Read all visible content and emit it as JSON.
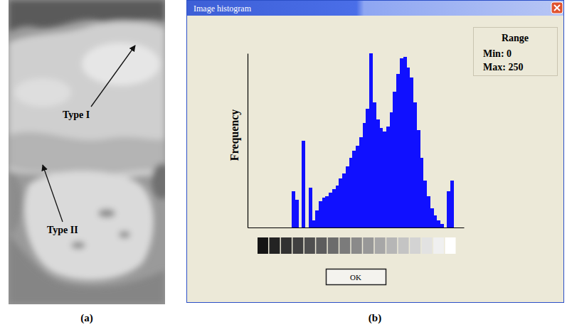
{
  "panel_a": {
    "letter": "(a)",
    "annotations": [
      "Type I",
      "Type II"
    ]
  },
  "panel_b": {
    "letter": "(b)",
    "window_title": "Image histogram",
    "range_box": {
      "heading": "Range",
      "lines": [
        "Min: 0",
        "Max: 250"
      ]
    },
    "button": "OK"
  },
  "chart_data": {
    "type": "histogram",
    "y_label": "Frequency",
    "color": "#1010ff",
    "tick_labels": false,
    "xlim": [
      0,
      256
    ],
    "ylim": [
      0,
      100
    ],
    "bins": [
      0,
      4,
      8,
      12,
      16,
      20,
      24,
      28,
      32,
      36,
      40,
      44,
      48,
      52,
      56,
      60,
      64,
      68,
      72,
      76,
      80,
      84,
      88,
      92,
      96,
      100,
      104,
      108,
      112,
      116,
      120,
      124,
      128,
      132,
      136,
      140,
      144,
      148,
      152,
      156,
      160,
      164,
      168,
      172,
      176,
      180,
      184,
      188,
      192,
      196,
      200,
      204,
      208,
      212,
      216,
      220,
      224,
      228,
      232,
      236,
      240,
      244,
      248,
      252,
      256
    ],
    "values": [
      0,
      0,
      0,
      0,
      0,
      0,
      0,
      0,
      0,
      0,
      0,
      0,
      0,
      21,
      16,
      0,
      50,
      0,
      23,
      4,
      10,
      15,
      17,
      18,
      20,
      22,
      24,
      28,
      31,
      35,
      40,
      44,
      47,
      52,
      60,
      68,
      100,
      72,
      62,
      57,
      55,
      58,
      66,
      78,
      88,
      97,
      98,
      92,
      86,
      72,
      56,
      40,
      27,
      18,
      11,
      7,
      4,
      2,
      0,
      21,
      27,
      0,
      0,
      0
    ]
  }
}
